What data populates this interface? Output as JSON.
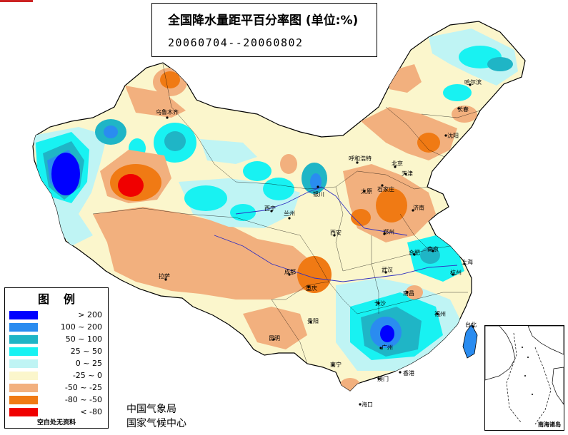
{
  "map": {
    "title": "全国降水量距平百分率图 (单位:%)",
    "period": "20060704--20060802"
  },
  "legend": {
    "title": "图例",
    "items": [
      {
        "range": "> 200",
        "color": "#0000ff"
      },
      {
        "range": "100 ~ 200",
        "color": "#2a8cf0"
      },
      {
        "range": "50 ~ 100",
        "color": "#1fb5c6"
      },
      {
        "range": "25 ~ 50",
        "color": "#18f2f2"
      },
      {
        "range": "0 ~ 25",
        "color": "#bff4f4"
      },
      {
        "range": "-25 ~ 0",
        "color": "#fbf6cc"
      },
      {
        "range": "-50 ~ -25",
        "color": "#f2b07e"
      },
      {
        "range": "-80 ~ -50",
        "color": "#f07a14"
      },
      {
        "range": "< -80",
        "color": "#f00000"
      }
    ],
    "note": "空白处无资料"
  },
  "agency": {
    "line1": "中国气象局",
    "line2": "国家气候中心"
  },
  "inset": {
    "label": "南海诸岛"
  },
  "cities": {
    "urumqi": "乌鲁木齐",
    "lhasa": "拉萨",
    "xining": "西宁",
    "lanzhou": "兰州",
    "yinchuan": "银川",
    "hohhot": "呼和浩特",
    "beijing": "北京",
    "tianjin": "天津",
    "shijiazhuang": "石家庄",
    "taiyuan": "太原",
    "jinan": "济南",
    "zhengzhou": "郑州",
    "xian": "西安",
    "chengdu": "成都",
    "chongqing": "重庆",
    "wuhan": "武汉",
    "hefei": "合肥",
    "nanjing": "南京",
    "shanghai": "上海",
    "hangzhou": "杭州",
    "nanchang": "南昌",
    "changsha": "长沙",
    "fuzhou": "福州",
    "taibei": "台北",
    "guiyang": "贵阳",
    "kunming": "昆明",
    "nanning": "南宁",
    "guangzhou": "广州",
    "hongkong": "香港",
    "macau": "澳门",
    "haikou": "海口",
    "harbin": "哈尔滨",
    "changchun": "长春",
    "shenyang": "沈阳"
  }
}
